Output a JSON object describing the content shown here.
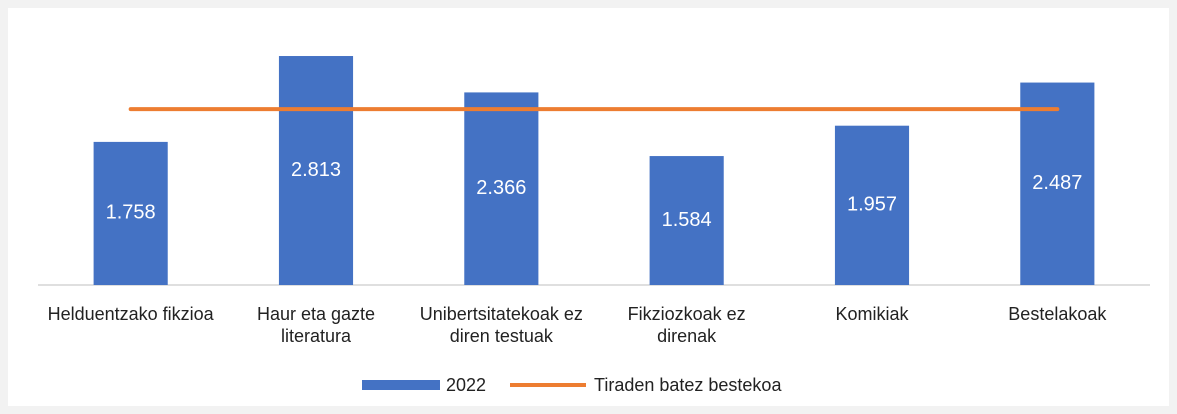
{
  "chart_data": {
    "type": "bar",
    "categories": [
      "Helduentzako fikzioa",
      "Haur eta gazte literatura",
      "Unibertsitatekoak ez diren testuak",
      "Fikziozkoak ez direnak",
      "Komikiak",
      "Bestelakoak"
    ],
    "series": [
      {
        "name": "2022",
        "type": "bar",
        "color": "#4472c4",
        "values": [
          1758,
          2813,
          2366,
          1584,
          1957,
          2487
        ],
        "value_labels": [
          "1.758",
          "2.813",
          "2.366",
          "1.584",
          "1.957",
          "2.487"
        ]
      },
      {
        "name": "Tiraden batez bestekoa",
        "type": "line",
        "color": "#ed7d31",
        "values": [
          2161,
          2161,
          2161,
          2161,
          2161,
          2161
        ]
      }
    ]
  }
}
